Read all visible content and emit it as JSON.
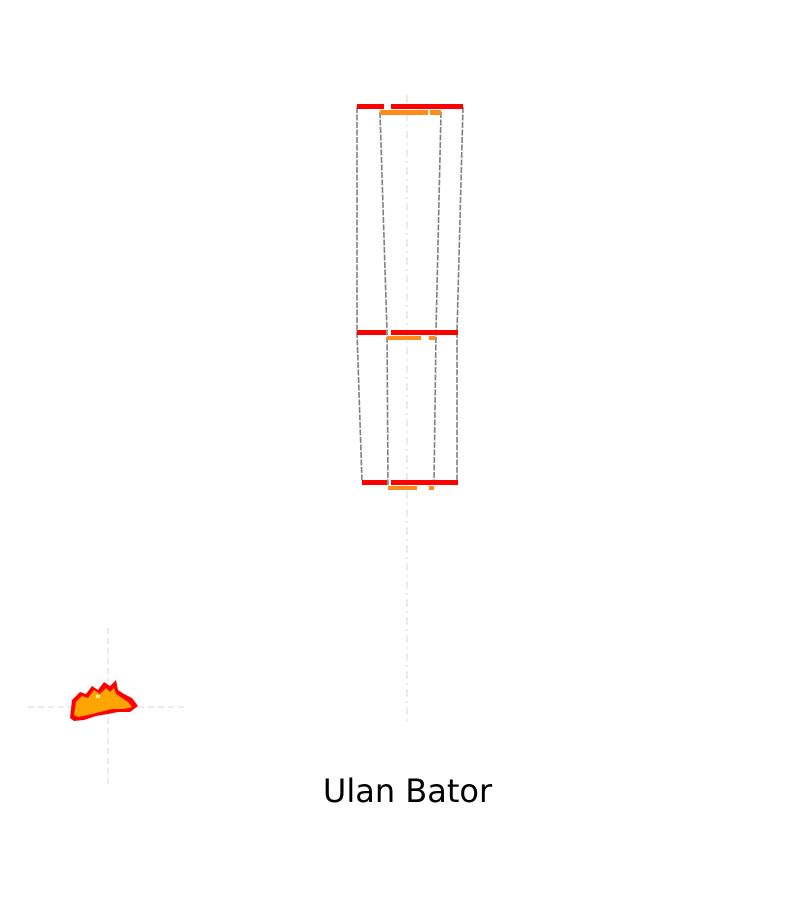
{
  "caption": "Ulan Bator",
  "colors": {
    "background": "#ffffff",
    "primary_stripe": "#ff0000",
    "secondary_stripe": "#ff8c1a",
    "outline": "#808080",
    "guide": "#d9d9d9",
    "marker_fill": "#ffa500"
  }
}
